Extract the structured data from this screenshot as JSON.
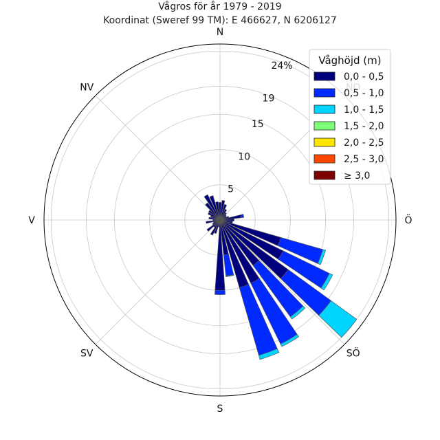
{
  "chart_data": {
    "type": "wind-rose",
    "title": "Vågros för år 1979 - 2019",
    "subtitle": "Koordinat (Sweref 99 TM): E 466627, N 6206127",
    "directions": [
      "N",
      "NV",
      "V",
      "SV",
      "S",
      "SÖ",
      "Ö",
      "NO"
    ],
    "radial_ticks": [
      "5",
      "10",
      "15",
      "19",
      "24%"
    ],
    "radial_tick_values": [
      5,
      10,
      15,
      19,
      24
    ],
    "rmax": 25,
    "legend": {
      "title": "Våghöjd (m)",
      "placement": "top-right",
      "bins": [
        {
          "label": "0,0 - 0,5",
          "color": "#00007f"
        },
        {
          "label": "0,5 - 1,0",
          "color": "#0029ff"
        },
        {
          "label": "1,0 - 1,5",
          "color": "#00d4ff"
        },
        {
          "label": "1,5 - 2,0",
          "color": "#7dff7a"
        },
        {
          "label": "2,0 - 2,5",
          "color": "#ffe600"
        },
        {
          "label": "2,5 - 3,0",
          "color": "#ff4700"
        },
        {
          "label": "≥ 3,0",
          "color": "#7f0000"
        }
      ]
    },
    "sector_width_deg": 10,
    "sectors": [
      {
        "dir_deg": 0,
        "cum": [
          2.5
        ]
      },
      {
        "dir_deg": 10,
        "cum": [
          2.8
        ]
      },
      {
        "dir_deg": 20,
        "cum": [
          2.3
        ]
      },
      {
        "dir_deg": 30,
        "cum": [
          1.7
        ]
      },
      {
        "dir_deg": 40,
        "cum": [
          1.3
        ]
      },
      {
        "dir_deg": 50,
        "cum": [
          1.1
        ]
      },
      {
        "dir_deg": 60,
        "cum": [
          1.0
        ]
      },
      {
        "dir_deg": 70,
        "cum": [
          1.3
        ]
      },
      {
        "dir_deg": 80,
        "cum": [
          3.0,
          3.4
        ]
      },
      {
        "dir_deg": 90,
        "cum": [
          2.0
        ]
      },
      {
        "dir_deg": 100,
        "cum": [
          1.8
        ]
      },
      {
        "dir_deg": 110,
        "cum": [
          9.0,
          15.2,
          15.6
        ]
      },
      {
        "dir_deg": 120,
        "cum": [
          10.0,
          17.3,
          17.8
        ]
      },
      {
        "dir_deg": 130,
        "cum": [
          12.0,
          19.5,
          24.0
        ]
      },
      {
        "dir_deg": 140,
        "cum": [
          8.0,
          17.0,
          17.4
        ]
      },
      {
        "dir_deg": 150,
        "cum": [
          10.0,
          19.6,
          20.0
        ]
      },
      {
        "dir_deg": 160,
        "cum": [
          10.0,
          20.0,
          20.6
        ]
      },
      {
        "dir_deg": 170,
        "cum": [
          5.0,
          8.0,
          8.1
        ]
      },
      {
        "dir_deg": 180,
        "cum": [
          10.0,
          10.6
        ]
      },
      {
        "dir_deg": 190,
        "cum": [
          1.0
        ]
      },
      {
        "dir_deg": 200,
        "cum": [
          2.0
        ]
      },
      {
        "dir_deg": 210,
        "cum": [
          2.4
        ]
      },
      {
        "dir_deg": 220,
        "cum": [
          1.3
        ]
      },
      {
        "dir_deg": 230,
        "cum": [
          2.3
        ]
      },
      {
        "dir_deg": 240,
        "cum": [
          1.2
        ]
      },
      {
        "dir_deg": 250,
        "cum": [
          1.0
        ]
      },
      {
        "dir_deg": 260,
        "cum": [
          2.0
        ]
      },
      {
        "dir_deg": 270,
        "cum": [
          1.0
        ]
      },
      {
        "dir_deg": 280,
        "cum": [
          1.6
        ]
      },
      {
        "dir_deg": 290,
        "cum": [
          1.4
        ]
      },
      {
        "dir_deg": 300,
        "cum": [
          1.9
        ]
      },
      {
        "dir_deg": 310,
        "cum": [
          2.0
        ]
      },
      {
        "dir_deg": 320,
        "cum": [
          3.0
        ]
      },
      {
        "dir_deg": 330,
        "cum": [
          4.0
        ]
      },
      {
        "dir_deg": 340,
        "cum": [
          3.6
        ]
      },
      {
        "dir_deg": 350,
        "cum": [
          2.6
        ]
      }
    ]
  }
}
